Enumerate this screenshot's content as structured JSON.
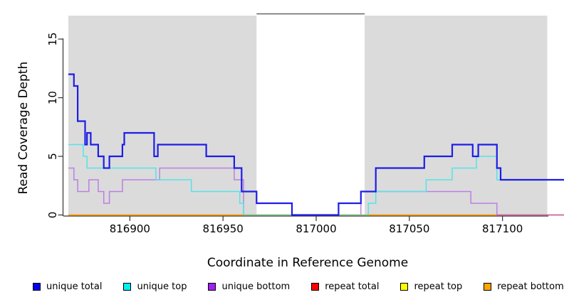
{
  "figure": {
    "background": "#ffffff",
    "plot_background_band": "#dbdbdb",
    "axis_color": "#333333"
  },
  "chart_data": {
    "type": "line",
    "subtype": "step-after",
    "title": "",
    "xlabel": "Coordinate in Reference Genome",
    "ylabel": "Read Coverage Depth",
    "xlim": [
      816867,
      817133
    ],
    "ylim": [
      0,
      17
    ],
    "grid": false,
    "x_ticks": [
      816900,
      816950,
      817000,
      817050,
      817100
    ],
    "x_tick_labels": [
      "816900",
      "816950",
      "817000",
      "817050",
      "817100"
    ],
    "y_ticks": [
      0,
      5,
      10,
      15
    ],
    "y_tick_labels": [
      "0",
      "5",
      "10",
      "15"
    ],
    "shaded_regions": [
      {
        "x0": 816867,
        "x1": 816968,
        "color": "#dbdbdb"
      },
      {
        "x0": 817026,
        "x1": 817124,
        "color": "#dbdbdb"
      }
    ],
    "gap_top_border": {
      "x0": 816968,
      "x1": 817026,
      "color": "#666666"
    },
    "series": [
      {
        "name": "repeat total",
        "color": "#e00000",
        "width": 1.2,
        "points": [
          [
            816867,
            0
          ]
        ]
      },
      {
        "name": "repeat top",
        "color": "#f0f000",
        "width": 1.2,
        "points": [
          [
            816867,
            0
          ]
        ]
      },
      {
        "name": "repeat bottom",
        "color": "#ffa30f",
        "width": 1.8,
        "points": [
          [
            816867,
            0
          ]
        ]
      },
      {
        "name": "unique bottom",
        "color": "#bd7fe3",
        "width": 1.5,
        "points": [
          [
            816867,
            4
          ],
          [
            816870,
            3
          ],
          [
            816872,
            2
          ],
          [
            816878,
            3
          ],
          [
            816883,
            2
          ],
          [
            816886,
            1
          ],
          [
            816889,
            2
          ],
          [
            816896,
            3
          ],
          [
            816916,
            4
          ],
          [
            816956,
            3
          ],
          [
            816961,
            0
          ],
          [
            817024,
            2
          ],
          [
            817083,
            1
          ],
          [
            817097,
            0
          ]
        ]
      },
      {
        "name": "unique top",
        "color": "#55e3e6",
        "width": 1.5,
        "points": [
          [
            816867,
            6
          ],
          [
            816875,
            5
          ],
          [
            816877,
            4
          ],
          [
            816914,
            3
          ],
          [
            816933,
            2
          ],
          [
            816959,
            1
          ],
          [
            816961,
            0
          ],
          [
            817028,
            1
          ],
          [
            817032,
            2
          ],
          [
            817059,
            3
          ],
          [
            817073,
            4
          ],
          [
            817086,
            5
          ],
          [
            817097,
            3
          ]
        ]
      },
      {
        "name": "unique total",
        "color": "#1d1de8",
        "width": 2.2,
        "draw_last": true,
        "points": [
          [
            816867,
            12
          ],
          [
            816870,
            11
          ],
          [
            816872,
            8
          ],
          [
            816876,
            6
          ],
          [
            816877,
            7
          ],
          [
            816879,
            6
          ],
          [
            816883,
            5
          ],
          [
            816886,
            4
          ],
          [
            816889,
            5
          ],
          [
            816896,
            6
          ],
          [
            816897,
            7
          ],
          [
            816913,
            5
          ],
          [
            816915,
            6
          ],
          [
            816941,
            5
          ],
          [
            816956,
            4
          ],
          [
            816960,
            2
          ],
          [
            816968,
            1
          ],
          [
            816987,
            0
          ],
          [
            817012,
            1
          ],
          [
            817024,
            2
          ],
          [
            817032,
            4
          ],
          [
            817058,
            5
          ],
          [
            817073,
            6
          ],
          [
            817084,
            5
          ],
          [
            817087,
            6
          ],
          [
            817097,
            4
          ],
          [
            817099,
            3
          ]
        ]
      }
    ],
    "baseline_overlays": [
      {
        "x0": 816961,
        "x1": 817028,
        "color": "#8ccc8c",
        "note": "unique-top at 0 over repeat baseline"
      },
      {
        "x0": 817097,
        "x1": 817133,
        "color": "#d169b0",
        "note": "unique-bottom at 0 over repeat baseline"
      }
    ],
    "legend": {
      "position": "bottom",
      "items": [
        {
          "label": "unique total",
          "color": "#0000f0"
        },
        {
          "label": "unique top",
          "color": "#00f0f0"
        },
        {
          "label": "unique bottom",
          "color": "#a020f0"
        },
        {
          "label": "repeat total",
          "color": "#ff0000"
        },
        {
          "label": "repeat top",
          "color": "#ffff00"
        },
        {
          "label": "repeat bottom",
          "color": "#ffa500"
        }
      ]
    }
  }
}
